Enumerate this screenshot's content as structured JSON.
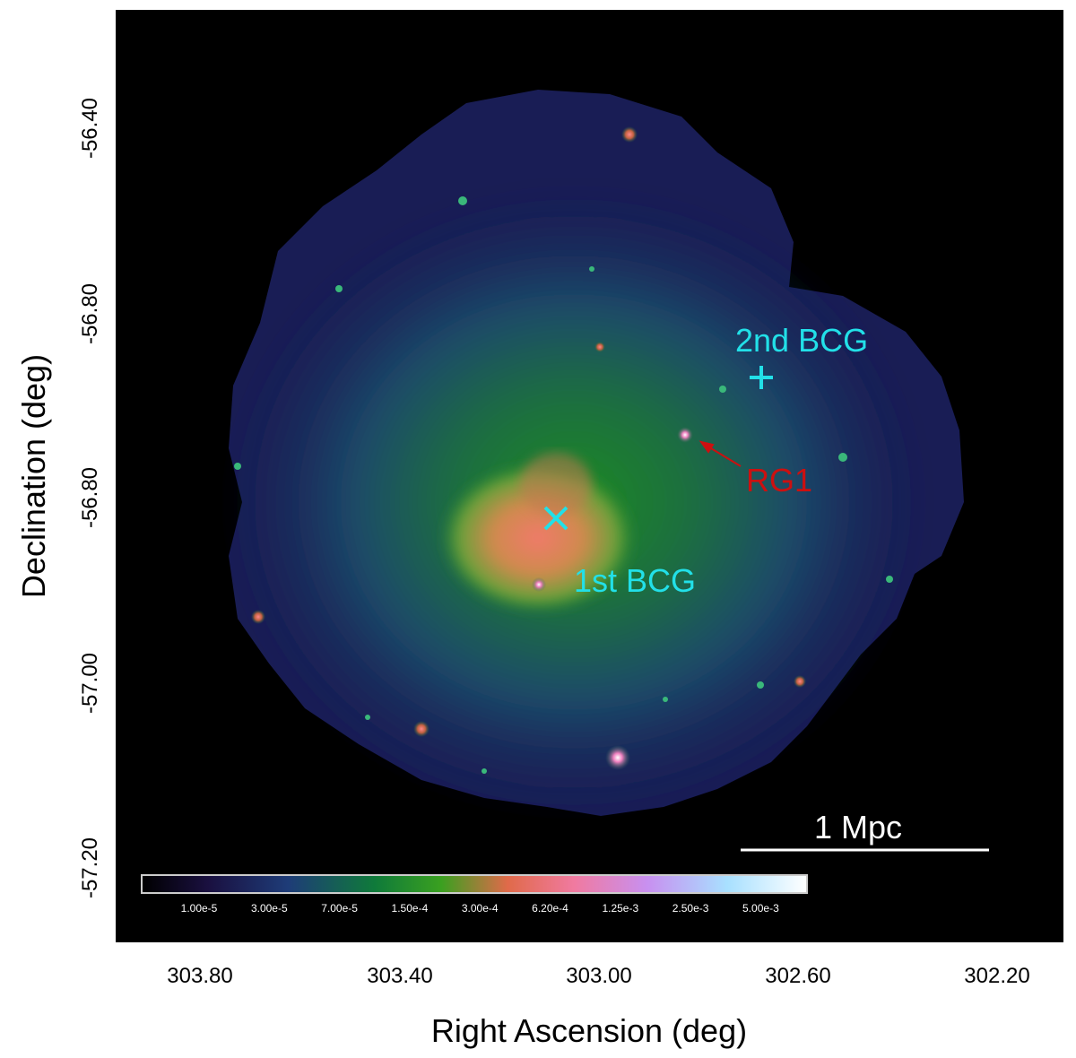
{
  "figure": {
    "x_axis_label": "Right Ascension (deg)",
    "y_axis_label": "Declination (deg)",
    "x_ticks": [
      "303.80",
      "303.40",
      "303.00",
      "302.60",
      "302.20"
    ],
    "y_ticks": [
      "-56.40",
      "-56.80",
      "-56.80",
      "-56.80",
      "-57.00",
      "-57.20"
    ]
  },
  "annotations": {
    "second_bcg": "2nd BCG",
    "first_bcg": "1st BCG",
    "rg1": "RG1",
    "scale_bar": "1 Mpc",
    "bcg_color": "#22e0e8",
    "rg1_color": "#cc1010"
  },
  "colorbar": {
    "labels": [
      "1.00e-5",
      "3.00e-5",
      "7.00e-5",
      "1.50e-4",
      "3.00e-4",
      "6.20e-4",
      "1.25e-3",
      "2.50e-3",
      "5.00e-3"
    ],
    "colors": [
      "#000000",
      "#1a1040",
      "#1e3c78",
      "#0f7a3a",
      "#3aa020",
      "#e06a4a",
      "#f07aa0",
      "#c890f0",
      "#a8e0ff",
      "#ffffff"
    ]
  }
}
